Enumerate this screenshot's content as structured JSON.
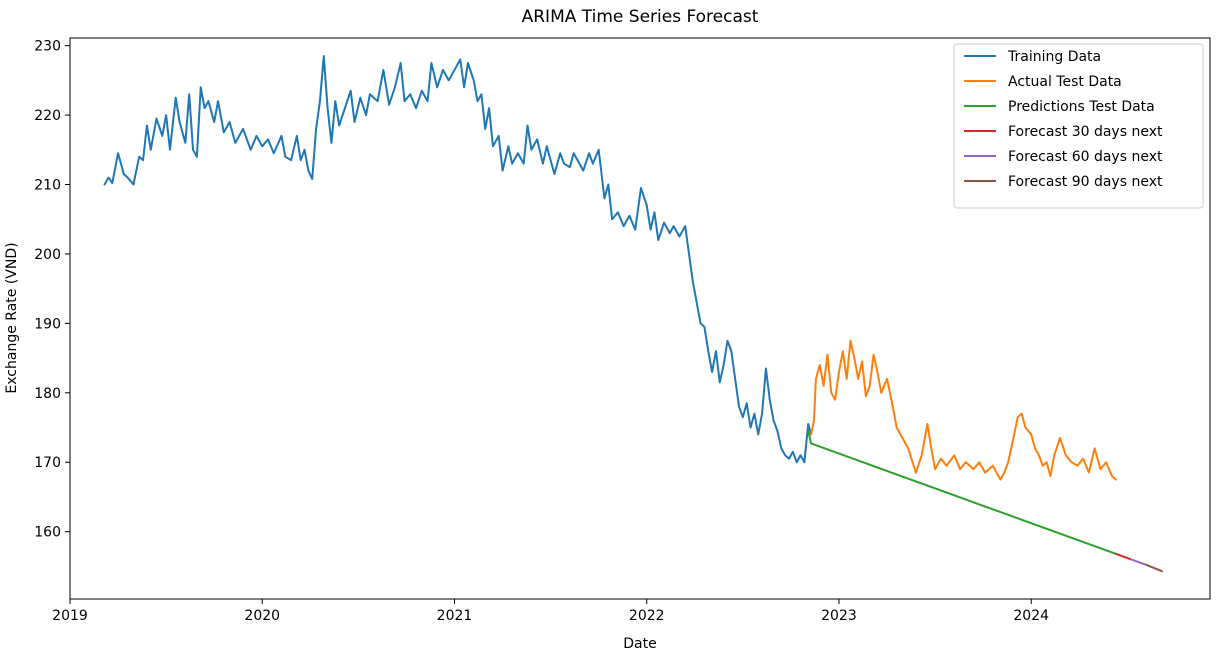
{
  "chart_data": {
    "type": "line",
    "title": "ARIMA Time Series Forecast",
    "xlabel": "Date",
    "ylabel": "Exchange Rate (VND)",
    "x_range": [
      2019.0,
      2024.93
    ],
    "ylim": [
      150.3,
      231.1
    ],
    "x_ticks": [
      2019,
      2020,
      2021,
      2022,
      2023,
      2024
    ],
    "y_ticks": [
      160,
      170,
      180,
      190,
      200,
      210,
      220,
      230
    ],
    "grid": false,
    "legend_position": "top-right",
    "series": [
      {
        "name": "Training Data",
        "color": "#1f77b4",
        "points": [
          [
            2019.18,
            210.0
          ],
          [
            2019.2,
            211.0
          ],
          [
            2019.22,
            210.2
          ],
          [
            2019.25,
            214.5
          ],
          [
            2019.28,
            211.5
          ],
          [
            2019.3,
            211.0
          ],
          [
            2019.33,
            210.0
          ],
          [
            2019.36,
            214.0
          ],
          [
            2019.38,
            213.5
          ],
          [
            2019.4,
            218.5
          ],
          [
            2019.42,
            215.0
          ],
          [
            2019.45,
            219.5
          ],
          [
            2019.48,
            217.0
          ],
          [
            2019.5,
            220.0
          ],
          [
            2019.52,
            215.0
          ],
          [
            2019.55,
            222.5
          ],
          [
            2019.57,
            219.0
          ],
          [
            2019.6,
            216.0
          ],
          [
            2019.62,
            223.0
          ],
          [
            2019.64,
            215.0
          ],
          [
            2019.66,
            214.0
          ],
          [
            2019.68,
            224.0
          ],
          [
            2019.7,
            221.0
          ],
          [
            2019.72,
            222.0
          ],
          [
            2019.75,
            219.0
          ],
          [
            2019.77,
            222.0
          ],
          [
            2019.8,
            217.5
          ],
          [
            2019.83,
            219.0
          ],
          [
            2019.86,
            216.0
          ],
          [
            2019.9,
            218.0
          ],
          [
            2019.94,
            215.0
          ],
          [
            2019.97,
            217.0
          ],
          [
            2020.0,
            215.5
          ],
          [
            2020.03,
            216.5
          ],
          [
            2020.06,
            214.5
          ],
          [
            2020.1,
            217.0
          ],
          [
            2020.12,
            214.0
          ],
          [
            2020.15,
            213.5
          ],
          [
            2020.18,
            217.0
          ],
          [
            2020.2,
            213.5
          ],
          [
            2020.22,
            215.0
          ],
          [
            2020.24,
            212.0
          ],
          [
            2020.26,
            210.8
          ],
          [
            2020.28,
            218.0
          ],
          [
            2020.3,
            222.0
          ],
          [
            2020.32,
            228.5
          ],
          [
            2020.34,
            221.0
          ],
          [
            2020.36,
            216.0
          ],
          [
            2020.38,
            222.0
          ],
          [
            2020.4,
            218.5
          ],
          [
            2020.43,
            221.0
          ],
          [
            2020.46,
            223.5
          ],
          [
            2020.48,
            219.0
          ],
          [
            2020.51,
            222.5
          ],
          [
            2020.54,
            220.0
          ],
          [
            2020.56,
            223.0
          ],
          [
            2020.6,
            222.0
          ],
          [
            2020.63,
            226.5
          ],
          [
            2020.66,
            221.5
          ],
          [
            2020.69,
            224.0
          ],
          [
            2020.72,
            227.5
          ],
          [
            2020.74,
            222.0
          ],
          [
            2020.77,
            223.0
          ],
          [
            2020.8,
            221.0
          ],
          [
            2020.83,
            223.5
          ],
          [
            2020.86,
            222.0
          ],
          [
            2020.88,
            227.5
          ],
          [
            2020.91,
            224.0
          ],
          [
            2020.94,
            226.5
          ],
          [
            2020.97,
            225.0
          ],
          [
            2021.0,
            226.5
          ],
          [
            2021.03,
            228.0
          ],
          [
            2021.05,
            224.0
          ],
          [
            2021.07,
            227.5
          ],
          [
            2021.1,
            225.0
          ],
          [
            2021.12,
            222.0
          ],
          [
            2021.14,
            223.0
          ],
          [
            2021.16,
            218.0
          ],
          [
            2021.18,
            221.0
          ],
          [
            2021.2,
            215.5
          ],
          [
            2021.23,
            217.0
          ],
          [
            2021.25,
            212.0
          ],
          [
            2021.28,
            215.5
          ],
          [
            2021.3,
            213.0
          ],
          [
            2021.33,
            214.5
          ],
          [
            2021.36,
            213.0
          ],
          [
            2021.38,
            218.5
          ],
          [
            2021.4,
            215.0
          ],
          [
            2021.43,
            216.5
          ],
          [
            2021.46,
            213.0
          ],
          [
            2021.48,
            215.5
          ],
          [
            2021.52,
            211.5
          ],
          [
            2021.55,
            214.5
          ],
          [
            2021.57,
            213.0
          ],
          [
            2021.6,
            212.5
          ],
          [
            2021.62,
            214.5
          ],
          [
            2021.65,
            213.0
          ],
          [
            2021.67,
            212.0
          ],
          [
            2021.7,
            214.5
          ],
          [
            2021.72,
            213.0
          ],
          [
            2021.75,
            215.0
          ],
          [
            2021.78,
            208.0
          ],
          [
            2021.8,
            210.0
          ],
          [
            2021.82,
            205.0
          ],
          [
            2021.85,
            206.0
          ],
          [
            2021.88,
            204.0
          ],
          [
            2021.91,
            205.5
          ],
          [
            2021.94,
            203.5
          ],
          [
            2021.97,
            209.5
          ],
          [
            2022.0,
            207.0
          ],
          [
            2022.02,
            203.5
          ],
          [
            2022.04,
            206.0
          ],
          [
            2022.06,
            202.0
          ],
          [
            2022.09,
            204.5
          ],
          [
            2022.12,
            203.0
          ],
          [
            2022.14,
            204.0
          ],
          [
            2022.17,
            202.5
          ],
          [
            2022.2,
            204.0
          ],
          [
            2022.22,
            200.0
          ],
          [
            2022.24,
            196.0
          ],
          [
            2022.26,
            193.0
          ],
          [
            2022.28,
            190.0
          ],
          [
            2022.3,
            189.5
          ],
          [
            2022.32,
            186.0
          ],
          [
            2022.34,
            183.0
          ],
          [
            2022.36,
            186.0
          ],
          [
            2022.38,
            181.5
          ],
          [
            2022.4,
            184.0
          ],
          [
            2022.42,
            187.5
          ],
          [
            2022.44,
            186.0
          ],
          [
            2022.46,
            182.0
          ],
          [
            2022.48,
            178.0
          ],
          [
            2022.5,
            176.5
          ],
          [
            2022.52,
            178.5
          ],
          [
            2022.54,
            175.0
          ],
          [
            2022.56,
            177.0
          ],
          [
            2022.58,
            174.0
          ],
          [
            2022.6,
            177.0
          ],
          [
            2022.62,
            183.5
          ],
          [
            2022.64,
            179.0
          ],
          [
            2022.66,
            176.0
          ],
          [
            2022.68,
            174.5
          ],
          [
            2022.7,
            172.0
          ],
          [
            2022.72,
            171.0
          ],
          [
            2022.74,
            170.5
          ],
          [
            2022.76,
            171.5
          ],
          [
            2022.78,
            170.0
          ],
          [
            2022.8,
            171.0
          ],
          [
            2022.82,
            170.0
          ],
          [
            2022.84,
            175.5
          ],
          [
            2022.855,
            174.0
          ]
        ]
      },
      {
        "name": "Actual Test Data",
        "color": "#ff7f0e",
        "points": [
          [
            2022.855,
            174.0
          ],
          [
            2022.87,
            176.0
          ],
          [
            2022.88,
            182.0
          ],
          [
            2022.9,
            184.0
          ],
          [
            2022.92,
            181.0
          ],
          [
            2022.94,
            185.5
          ],
          [
            2022.96,
            180.0
          ],
          [
            2022.98,
            179.0
          ],
          [
            2023.0,
            183.0
          ],
          [
            2023.02,
            186.0
          ],
          [
            2023.04,
            182.0
          ],
          [
            2023.06,
            187.5
          ],
          [
            2023.08,
            185.0
          ],
          [
            2023.1,
            182.0
          ],
          [
            2023.12,
            184.5
          ],
          [
            2023.14,
            179.5
          ],
          [
            2023.16,
            181.0
          ],
          [
            2023.18,
            185.5
          ],
          [
            2023.2,
            183.0
          ],
          [
            2023.22,
            180.0
          ],
          [
            2023.25,
            182.0
          ],
          [
            2023.28,
            178.0
          ],
          [
            2023.3,
            175.0
          ],
          [
            2023.33,
            173.5
          ],
          [
            2023.36,
            172.0
          ],
          [
            2023.4,
            168.5
          ],
          [
            2023.43,
            171.0
          ],
          [
            2023.46,
            175.5
          ],
          [
            2023.48,
            172.0
          ],
          [
            2023.5,
            169.0
          ],
          [
            2023.53,
            170.5
          ],
          [
            2023.56,
            169.5
          ],
          [
            2023.6,
            171.0
          ],
          [
            2023.63,
            169.0
          ],
          [
            2023.66,
            170.0
          ],
          [
            2023.7,
            169.0
          ],
          [
            2023.73,
            170.0
          ],
          [
            2023.76,
            168.5
          ],
          [
            2023.8,
            169.5
          ],
          [
            2023.84,
            167.5
          ],
          [
            2023.86,
            168.5
          ],
          [
            2023.88,
            170.0
          ],
          [
            2023.9,
            172.5
          ],
          [
            2023.93,
            176.5
          ],
          [
            2023.95,
            177.0
          ],
          [
            2023.97,
            175.0
          ],
          [
            2024.0,
            174.0
          ],
          [
            2024.02,
            172.0
          ],
          [
            2024.04,
            171.0
          ],
          [
            2024.06,
            169.5
          ],
          [
            2024.08,
            170.0
          ],
          [
            2024.1,
            168.0
          ],
          [
            2024.12,
            171.0
          ],
          [
            2024.15,
            173.5
          ],
          [
            2024.18,
            171.0
          ],
          [
            2024.21,
            170.0
          ],
          [
            2024.24,
            169.5
          ],
          [
            2024.27,
            170.5
          ],
          [
            2024.3,
            168.5
          ],
          [
            2024.33,
            172.0
          ],
          [
            2024.36,
            169.0
          ],
          [
            2024.39,
            170.0
          ],
          [
            2024.42,
            168.0
          ],
          [
            2024.44,
            167.5
          ]
        ]
      },
      {
        "name": "Predictions Test Data",
        "color": "#2ca02c",
        "points": [
          [
            2022.84,
            174.5
          ],
          [
            2022.855,
            172.7
          ],
          [
            2024.44,
            156.8
          ]
        ]
      },
      {
        "name": "Forecast 30 days next",
        "color": "#d62728",
        "points": [
          [
            2024.44,
            156.8
          ],
          [
            2024.52,
            156.0
          ]
        ]
      },
      {
        "name": "Forecast 60 days next",
        "color": "#9467bd",
        "points": [
          [
            2024.52,
            156.0
          ],
          [
            2024.6,
            155.2
          ]
        ]
      },
      {
        "name": "Forecast 90 days next",
        "color": "#8c564b",
        "points": [
          [
            2024.6,
            155.2
          ],
          [
            2024.68,
            154.3
          ]
        ]
      }
    ]
  }
}
